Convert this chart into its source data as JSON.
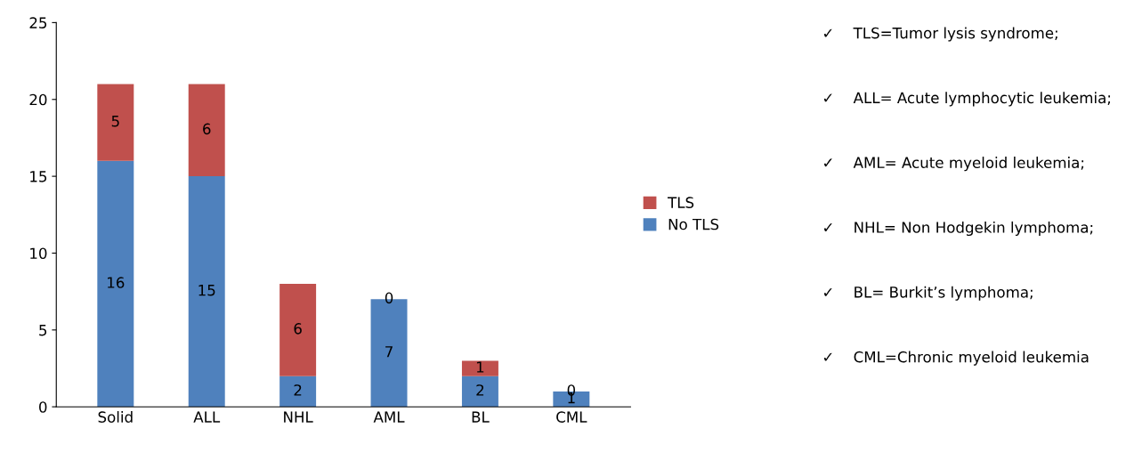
{
  "chart_data": {
    "type": "bar",
    "stacked": true,
    "categories": [
      "Solid",
      "ALL",
      "NHL",
      "AML",
      "BL",
      "CML"
    ],
    "series": [
      {
        "name": "No TLS",
        "color": "#4f81bd",
        "values": [
          16,
          15,
          2,
          7,
          2,
          1
        ]
      },
      {
        "name": "TLS",
        "color": "#c0504d",
        "values": [
          5,
          6,
          6,
          0,
          1,
          0
        ]
      }
    ],
    "ylim": [
      0,
      25
    ],
    "yticks": [
      0,
      5,
      10,
      15,
      20,
      25
    ],
    "data_labels": true,
    "grid": false,
    "legend": "right",
    "annotations": [
      "✓    TLS=Tumor lysis syndrome;",
      "✓    ALL= Acute lymphocytic leukemia;",
      "✓    AML= Acute myeloid leukemia;",
      "✓    NHL= Non Hodgekin lymphoma;",
      "✓    BL= Burkit’s lymphoma;",
      "✓    CML=Chronic myeloid leukemia"
    ]
  }
}
